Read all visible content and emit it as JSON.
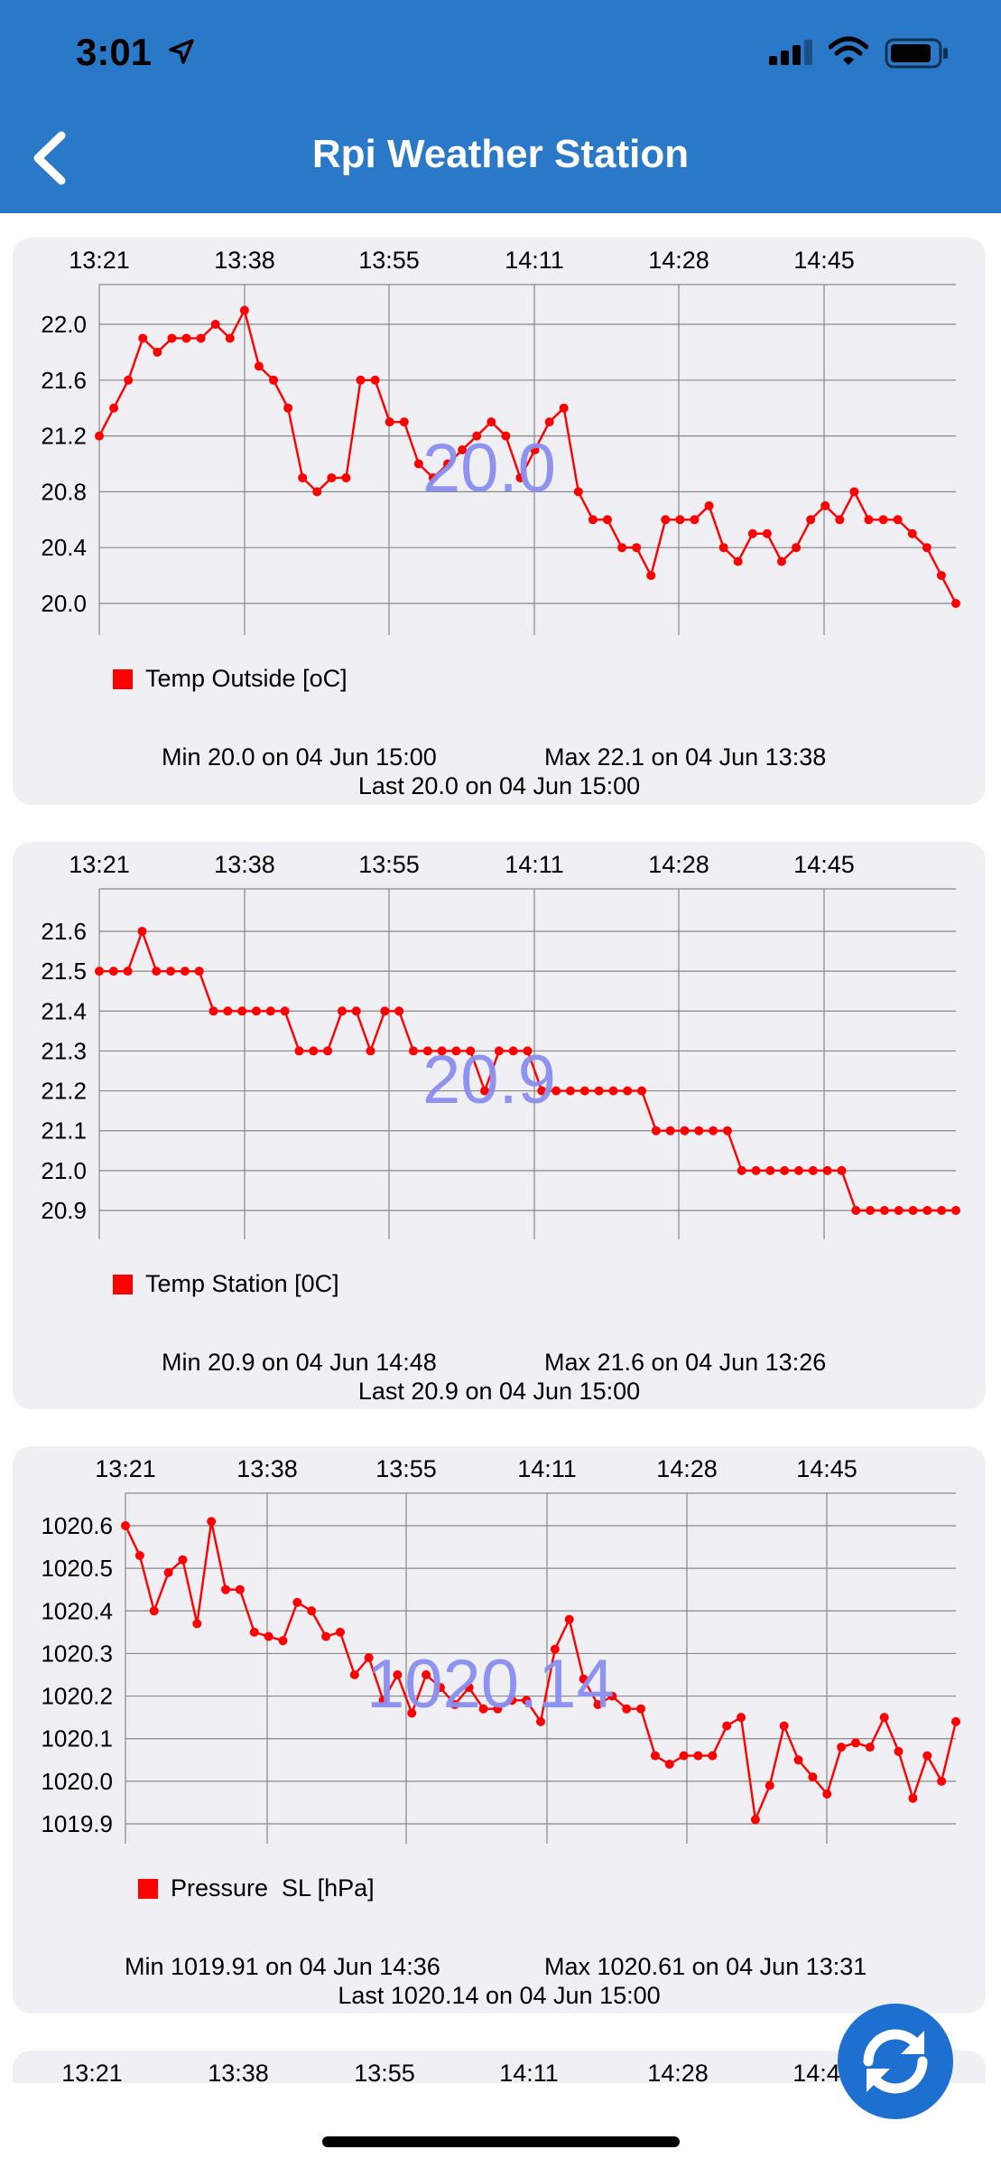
{
  "status_bar": {
    "time": "3:01"
  },
  "header": {
    "title": "Rpi Weather Station"
  },
  "x_ticks": [
    "13:21",
    "13:38",
    "13:55",
    "14:11",
    "14:28",
    "14:45"
  ],
  "colors": {
    "header": "#2a79c9",
    "series": "#ff0000",
    "overlay": "#8a8ff0",
    "card": "#efeff4"
  },
  "chart_data": [
    {
      "type": "line",
      "series": [
        {
          "name": "Temp Outside [oC]",
          "values": [
            21.2,
            21.4,
            21.6,
            21.9,
            21.8,
            21.9,
            21.9,
            21.9,
            22.0,
            21.9,
            22.1,
            21.7,
            21.6,
            21.4,
            20.9,
            20.8,
            20.9,
            20.9,
            21.6,
            21.6,
            21.3,
            21.3,
            21.0,
            20.9,
            21.0,
            21.1,
            21.2,
            21.3,
            21.2,
            20.9,
            21.1,
            21.3,
            21.4,
            20.8,
            20.6,
            20.6,
            20.4,
            20.4,
            20.2,
            20.6,
            20.6,
            20.6,
            20.7,
            20.4,
            20.3,
            20.5,
            20.5,
            20.3,
            20.4,
            20.6,
            20.7,
            20.6,
            20.8,
            20.6,
            20.6,
            20.6,
            20.5,
            20.4,
            20.2,
            20.0
          ]
        }
      ],
      "yticks": [
        "22.0",
        "21.6",
        "21.2",
        "20.8",
        "20.4",
        "20.0"
      ],
      "ylim": [
        20.0,
        22.0
      ],
      "current": "20.0",
      "min_text": "Min 20.0 on 04 Jun 15:00",
      "max_text": "Max 22.1 on 04 Jun 13:38",
      "last_text": "Last 20.0 on 04 Jun 15:00"
    },
    {
      "type": "line",
      "series": [
        {
          "name": "Temp Station [0C]",
          "values": [
            21.5,
            21.5,
            21.5,
            21.6,
            21.5,
            21.5,
            21.5,
            21.5,
            21.4,
            21.4,
            21.4,
            21.4,
            21.4,
            21.4,
            21.3,
            21.3,
            21.3,
            21.4,
            21.4,
            21.3,
            21.4,
            21.4,
            21.3,
            21.3,
            21.3,
            21.3,
            21.3,
            21.2,
            21.3,
            21.3,
            21.3,
            21.2,
            21.2,
            21.2,
            21.2,
            21.2,
            21.2,
            21.2,
            21.2,
            21.1,
            21.1,
            21.1,
            21.1,
            21.1,
            21.1,
            21.0,
            21.0,
            21.0,
            21.0,
            21.0,
            21.0,
            21.0,
            21.0,
            20.9,
            20.9,
            20.9,
            20.9,
            20.9,
            20.9,
            20.9,
            20.9
          ]
        }
      ],
      "yticks": [
        "21.6",
        "21.5",
        "21.4",
        "21.3",
        "21.2",
        "21.1",
        "21.0",
        "20.9"
      ],
      "ylim": [
        20.9,
        21.6
      ],
      "current": "20.9",
      "min_text": "Min 20.9 on 04 Jun 14:48",
      "max_text": "Max 21.6 on 04 Jun 13:26",
      "last_text": "Last 20.9 on 04 Jun 15:00"
    },
    {
      "type": "line",
      "series": [
        {
          "name": "Pressure  SL [hPa]",
          "values": [
            1020.6,
            1020.53,
            1020.4,
            1020.49,
            1020.52,
            1020.37,
            1020.61,
            1020.45,
            1020.45,
            1020.35,
            1020.34,
            1020.33,
            1020.42,
            1020.4,
            1020.34,
            1020.35,
            1020.25,
            1020.29,
            1020.19,
            1020.25,
            1020.16,
            1020.25,
            1020.22,
            1020.18,
            1020.22,
            1020.17,
            1020.17,
            1020.19,
            1020.19,
            1020.14,
            1020.31,
            1020.38,
            1020.24,
            1020.18,
            1020.2,
            1020.17,
            1020.17,
            1020.06,
            1020.04,
            1020.06,
            1020.06,
            1020.06,
            1020.13,
            1020.15,
            1019.91,
            1019.99,
            1020.13,
            1020.05,
            1020.01,
            1019.97,
            1020.08,
            1020.09,
            1020.08,
            1020.15,
            1020.07,
            1019.96,
            1020.06,
            1020.0,
            1020.14
          ]
        }
      ],
      "yticks": [
        "1020.6",
        "1020.5",
        "1020.4",
        "1020.3",
        "1020.2",
        "1020.1",
        "1020.0",
        "1019.9"
      ],
      "ylim": [
        1019.9,
        1020.6
      ],
      "current": "1020.14",
      "min_text": "Min 1019.91 on 04 Jun 14:36",
      "max_text": "Max 1020.61 on 04 Jun 13:31",
      "last_text": "Last 1020.14 on 04 Jun 15:00"
    }
  ]
}
